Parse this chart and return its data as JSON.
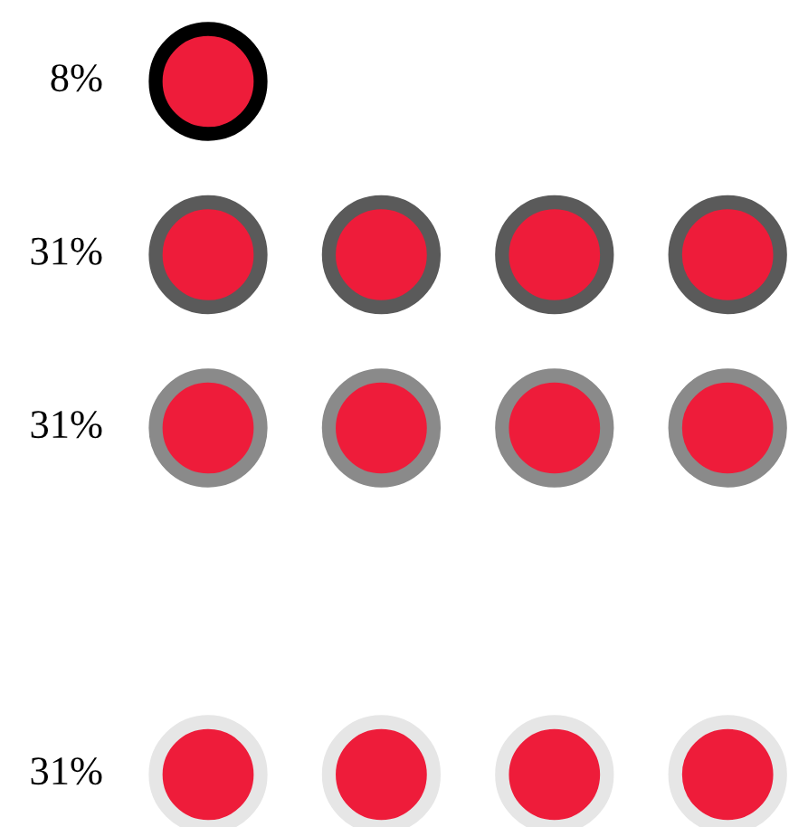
{
  "chart_data": {
    "type": "other",
    "values": [
      8,
      31,
      31,
      null,
      31
    ],
    "color": "#ee1c3a",
    "colors": [
      "#000000",
      "#5a5a5a",
      "#8a8a8a",
      "#cccccc",
      "#e6e6e6"
    ],
    "value_labels": [
      "8%",
      "31%",
      "31%",
      null,
      "31%"
    ]
  }
}
